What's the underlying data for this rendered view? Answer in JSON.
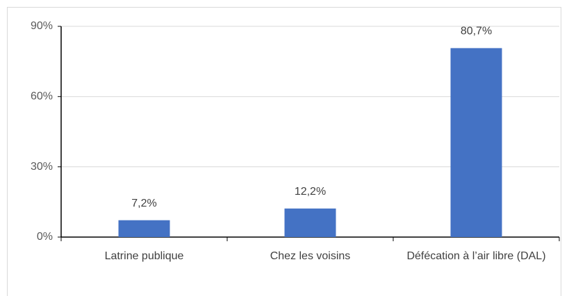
{
  "chart_data": {
    "type": "bar",
    "categories": [
      "Latrine publique",
      "Chez les voisins",
      "Défécation à l’air libre (DAL)"
    ],
    "values": [
      7.2,
      12.2,
      80.7
    ],
    "value_labels": [
      "7,2%",
      "12,2%",
      "80,7%"
    ],
    "color": "#4472c4",
    "ylim": [
      0,
      90
    ],
    "yticks": [
      {
        "value": 0,
        "label": "0%"
      },
      {
        "value": 30,
        "label": "30%"
      },
      {
        "value": 60,
        "label": "60%"
      },
      {
        "value": 90,
        "label": "90%"
      }
    ],
    "grid": true
  }
}
